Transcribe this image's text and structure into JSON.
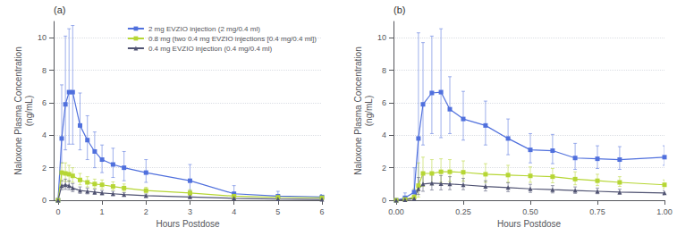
{
  "chart_data": [
    {
      "type": "line",
      "annotations": [
        "(a)"
      ],
      "xlabel": "Hours Postdose",
      "ylabel": "Naloxone Plasma Concentration\n(ng/mL)",
      "xlim": [
        -0.1,
        6
      ],
      "ylim": [
        0,
        11
      ],
      "xticks": [
        0,
        1,
        2,
        3,
        4,
        5,
        6
      ],
      "yticks": [
        0,
        2,
        4,
        6,
        8,
        10
      ],
      "grid": true,
      "legend": "upper right",
      "series": [
        {
          "name": "2 mg EVZIO injection (2 mg/0.4 ml)",
          "marker": "square",
          "line_style": "solid",
          "x": [
            0,
            0.083,
            0.167,
            0.25,
            0.333,
            0.5,
            0.667,
            0.833,
            1.0,
            1.25,
            1.5,
            2.0,
            3.0,
            4.0,
            5.0,
            6.0
          ],
          "y": [
            0.0,
            3.8,
            5.9,
            6.65,
            6.65,
            4.6,
            3.7,
            3.0,
            2.5,
            2.2,
            2.0,
            1.7,
            1.2,
            0.4,
            0.25,
            0.2
          ],
          "yerr_upper": [
            0.0,
            3.3,
            4.2,
            3.9,
            4.1,
            2.0,
            1.5,
            1.2,
            0.9,
            1.0,
            1.0,
            0.8,
            1.0,
            0.5,
            0.3,
            0.15
          ],
          "yerr_lower": [
            0.0,
            1.5,
            2.8,
            3.2,
            3.2,
            1.5,
            1.2,
            1.0,
            0.8,
            0.8,
            0.8,
            0.6,
            0.6,
            0.3,
            0.2,
            0.1
          ]
        },
        {
          "name": "0.8 mg (two 0.4 mg EVZIO injections [0.4 mg/0.4 ml])",
          "marker": "square",
          "line_style": "solid",
          "x": [
            0,
            0.083,
            0.167,
            0.25,
            0.333,
            0.5,
            0.667,
            0.833,
            1.0,
            1.25,
            1.5,
            2.0,
            3.0,
            4.0,
            5.0,
            6.0
          ],
          "y": [
            0.0,
            1.7,
            1.65,
            1.6,
            1.5,
            1.25,
            1.1,
            1.0,
            0.95,
            0.85,
            0.75,
            0.6,
            0.45,
            0.25,
            0.18,
            0.15
          ],
          "yerr_upper": [
            0.0,
            0.6,
            0.65,
            0.55,
            0.5,
            0.4,
            0.35,
            0.3,
            0.3,
            0.28,
            0.25,
            0.2,
            0.2,
            0.15,
            0.1,
            0.08
          ],
          "yerr_lower": [
            0.0,
            0.5,
            0.5,
            0.45,
            0.4,
            0.3,
            0.28,
            0.25,
            0.25,
            0.22,
            0.2,
            0.15,
            0.15,
            0.1,
            0.08,
            0.06
          ]
        },
        {
          "name": "0.4 mg EVZIO injection (0.4 mg/0.4 ml)",
          "marker": "triangle",
          "line_style": "solid",
          "x": [
            0,
            0.083,
            0.167,
            0.25,
            0.333,
            0.5,
            0.667,
            0.833,
            1.0,
            1.25,
            1.5,
            2.0,
            3.0,
            4.0,
            5.0,
            6.0
          ],
          "y": [
            0.0,
            0.9,
            0.95,
            0.9,
            0.75,
            0.6,
            0.55,
            0.5,
            0.45,
            0.4,
            0.35,
            0.28,
            0.2,
            0.12,
            0.08,
            0.05
          ],
          "yerr_upper": [
            0.0,
            0.3,
            0.35,
            0.3,
            0.28,
            0.22,
            0.2,
            0.18,
            0.15,
            0.15,
            0.12,
            0.1,
            0.08,
            0.06,
            0.04,
            0.03
          ],
          "yerr_lower": [
            0.0,
            0.25,
            0.28,
            0.25,
            0.22,
            0.18,
            0.16,
            0.14,
            0.12,
            0.12,
            0.1,
            0.08,
            0.06,
            0.05,
            0.03,
            0.02
          ]
        }
      ]
    },
    {
      "type": "line",
      "annotations": [
        "(b)"
      ],
      "xlabel": "Hours Postdose",
      "ylabel": "Naloxone Plasma Concentration\n(ng/mL)",
      "xlim": [
        -0.01,
        1.0
      ],
      "ylim": [
        0,
        11
      ],
      "xticks": [
        {
          "value": 0.0,
          "label": "0.00"
        },
        0.25,
        {
          "value": 0.5,
          "label": "0.50"
        },
        0.75,
        {
          "value": 1.0,
          "label": "1.00"
        }
      ],
      "yticks": [
        0,
        2,
        4,
        6,
        8,
        10
      ],
      "grid": true,
      "series": [
        {
          "name": "2 mg EVZIO injection (2 mg/0.4 ml)",
          "marker": "square",
          "line_style": "solid",
          "x": [
            0,
            0.033,
            0.067,
            0.083,
            0.1,
            0.133,
            0.167,
            0.2,
            0.25,
            0.333,
            0.417,
            0.5,
            0.583,
            0.667,
            0.75,
            0.833,
            1.0
          ],
          "y": [
            0.0,
            0.15,
            0.5,
            3.8,
            5.9,
            6.6,
            6.65,
            5.6,
            5.0,
            4.6,
            3.8,
            3.1,
            3.05,
            2.6,
            2.55,
            2.5,
            2.65
          ],
          "yerr_upper": [
            0.0,
            0.3,
            1.5,
            6.5,
            3.8,
            3.5,
            3.9,
            2.0,
            1.7,
            1.5,
            1.2,
            1.0,
            1.0,
            0.9,
            0.8,
            0.8,
            0.7
          ],
          "yerr_lower": [
            0.0,
            0.1,
            0.4,
            3.0,
            2.5,
            2.5,
            2.8,
            1.5,
            1.3,
            1.2,
            1.0,
            0.8,
            0.8,
            0.7,
            0.6,
            0.6,
            0.5
          ]
        },
        {
          "name": "0.8 mg (two 0.4 mg EVZIO injections [0.4 mg/0.4 ml])",
          "marker": "square",
          "line_style": "solid",
          "x": [
            0,
            0.033,
            0.067,
            0.083,
            0.1,
            0.133,
            0.167,
            0.2,
            0.25,
            0.333,
            0.417,
            0.5,
            0.583,
            0.667,
            0.75,
            0.833,
            1.0
          ],
          "y": [
            0.0,
            0.05,
            0.2,
            0.9,
            1.65,
            1.65,
            1.75,
            1.75,
            1.72,
            1.6,
            1.55,
            1.5,
            1.45,
            1.3,
            1.2,
            1.1,
            0.95
          ],
          "yerr_upper": [
            0.0,
            0.05,
            0.5,
            1.4,
            1.0,
            0.85,
            0.8,
            0.75,
            0.7,
            0.65,
            0.6,
            0.55,
            0.5,
            0.45,
            0.4,
            0.35,
            0.3
          ],
          "yerr_lower": [
            0.0,
            0.03,
            0.15,
            0.7,
            0.8,
            0.7,
            0.65,
            0.6,
            0.55,
            0.5,
            0.45,
            0.4,
            0.38,
            0.35,
            0.3,
            0.25,
            0.22
          ]
        },
        {
          "name": "0.4 mg EVZIO injection (0.4 mg/0.4 ml)",
          "marker": "triangle",
          "line_style": "solid",
          "x": [
            0,
            0.033,
            0.067,
            0.083,
            0.1,
            0.133,
            0.167,
            0.2,
            0.25,
            0.333,
            0.417,
            0.5,
            0.583,
            0.667,
            0.75,
            0.833,
            1.0
          ],
          "y": [
            0.0,
            0.03,
            0.1,
            0.7,
            1.0,
            1.05,
            1.02,
            1.0,
            0.95,
            0.85,
            0.78,
            0.7,
            0.65,
            0.6,
            0.55,
            0.5,
            0.45
          ],
          "yerr_upper": [
            0.0,
            0.03,
            0.2,
            0.7,
            0.6,
            0.55,
            0.5,
            0.45,
            0.4,
            0.35,
            0.3,
            0.28,
            0.25,
            0.22,
            0.2,
            0.18,
            0.15
          ],
          "yerr_lower": [
            0.0,
            0.02,
            0.08,
            0.35,
            0.45,
            0.42,
            0.38,
            0.35,
            0.3,
            0.28,
            0.25,
            0.22,
            0.2,
            0.18,
            0.15,
            0.13,
            0.12
          ]
        }
      ]
    }
  ]
}
